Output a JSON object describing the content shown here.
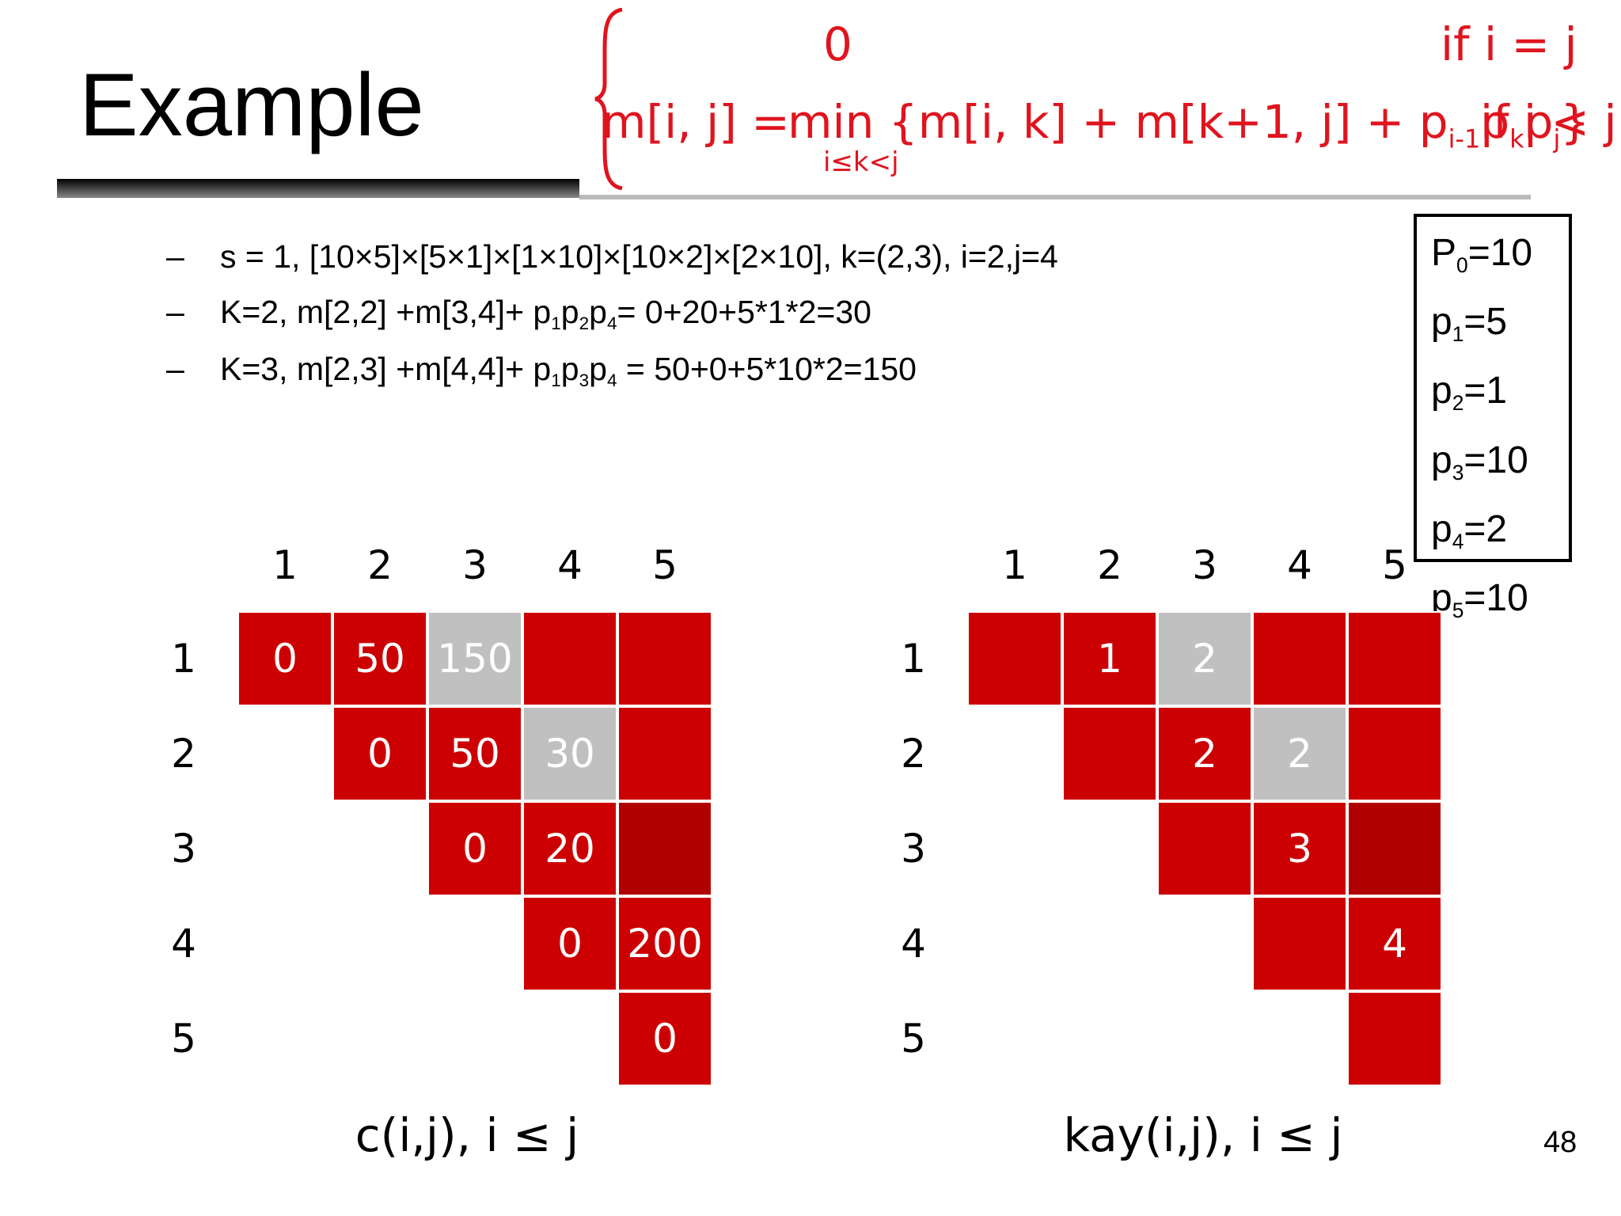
{
  "title": "Example",
  "formula": {
    "lhs": "m[i, j] =",
    "case1_value": "0",
    "case1_cond": "if i = j",
    "case2_value": "min {m[i, k] + m[k+1, j] + p",
    "case2_sub1": "i-1",
    "case2_mid": "p",
    "case2_sub2": "k",
    "case2_p3": "p",
    "case2_sub3": "j",
    "case2_end": "}",
    "case2_under": "i≤k<j",
    "case2_cond": "if i < j"
  },
  "bullets": [
    "s = 1, [10×5]×[5×1]×[1×10]×[10×2]×[2×10], k=(2,3), i=2,j=4",
    "K=2, m[2,2] +m[3,4]+ p",
    "K=3, m[2,3] +m[4,4]+ p"
  ],
  "bullet_dash": "–",
  "bullet2": {
    "a": "K=2, m[2,2] +m[3,4]+ p",
    "s1": "1",
    "b": "p",
    "s2": "2",
    "c": "p",
    "s3": "4",
    "d": "= 0+20+5*1*2=30"
  },
  "bullet3": {
    "a": "K=3, m[2,3] +m[4,4]+ p",
    "s1": "1",
    "b": "p",
    "s2": "3",
    "c": "p",
    "s3": "4",
    "d": " = 50+0+5*10*2=150"
  },
  "p_values": [
    {
      "name": "P",
      "sub": "0",
      "val": "=10"
    },
    {
      "name": "p",
      "sub": "1",
      "val": "=5"
    },
    {
      "name": "p",
      "sub": "2",
      "val": "=1"
    },
    {
      "name": "p",
      "sub": "3",
      "val": "=10"
    },
    {
      "name": "p",
      "sub": "4",
      "val": "=2"
    },
    {
      "name": "p",
      "sub": "5",
      "val": "=10"
    }
  ],
  "headers": [
    "1",
    "2",
    "3",
    "4",
    "5"
  ],
  "cost_table": {
    "caption": "c(i,j), i ≤ j",
    "rows": [
      [
        "0",
        "50",
        "150",
        "",
        ""
      ],
      [
        "",
        "0",
        "50",
        "30",
        ""
      ],
      [
        "",
        "",
        "0",
        "20",
        ""
      ],
      [
        "",
        "",
        "",
        "0",
        "200"
      ],
      [
        "",
        "",
        "",
        "",
        "0"
      ]
    ]
  },
  "kay_table": {
    "caption": "kay(i,j), i ≤ j",
    "rows": [
      [
        "",
        "1",
        "2",
        "",
        ""
      ],
      [
        "",
        "",
        "2",
        "2",
        ""
      ],
      [
        "",
        "",
        "",
        "3",
        ""
      ],
      [
        "",
        "",
        "",
        "",
        "4"
      ],
      [
        "",
        "",
        "",
        "",
        ""
      ]
    ]
  },
  "highlighted_cells": [
    [
      0,
      2
    ],
    [
      1,
      3
    ]
  ],
  "dark_cells": [
    [
      2,
      4
    ]
  ],
  "colors": {
    "cell": "#cc0000",
    "highlight": "#c0c0c0",
    "formula": "#e0141e"
  },
  "page_number": "48"
}
